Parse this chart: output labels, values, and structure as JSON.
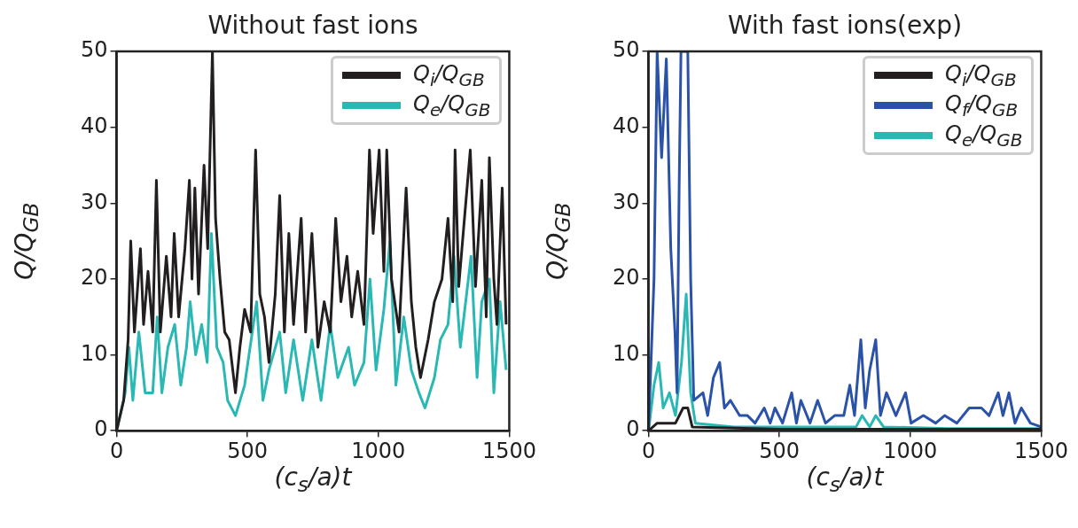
{
  "chart_data": [
    {
      "type": "line",
      "title": "Without fast ions",
      "xlabel": "(c$_{s}$/a)t",
      "ylabel": "Q/Q$_{GB}$",
      "xlim": [
        0,
        1500
      ],
      "ylim": [
        0,
        50
      ],
      "xticks": [
        0,
        500,
        1000,
        1500
      ],
      "yticks": [
        0,
        10,
        20,
        30,
        40,
        50
      ],
      "grid": false,
      "legend": "top right",
      "series": [
        {
          "name": "Q$_{i}$/Q$_{GB}$",
          "color": "#231f20",
          "x": [
            0,
            27,
            44,
            54,
            68,
            91,
            103,
            120,
            138,
            152,
            167,
            190,
            208,
            220,
            237,
            261,
            278,
            288,
            299,
            313,
            334,
            348,
            366,
            378,
            395,
            413,
            430,
            454,
            471,
            489,
            512,
            531,
            547,
            565,
            582,
            606,
            623,
            641,
            658,
            676,
            705,
            722,
            746,
            769,
            793,
            816,
            837,
            857,
            880,
            898,
            921,
            945,
            966,
            980,
            1003,
            1021,
            1032,
            1050,
            1079,
            1106,
            1126,
            1143,
            1161,
            1190,
            1214,
            1243,
            1266,
            1284,
            1293,
            1307,
            1324,
            1351,
            1371,
            1395,
            1412,
            1424,
            1441,
            1453,
            1473,
            1488
          ],
          "values": [
            0,
            4,
            12,
            25,
            13,
            24,
            14,
            21,
            13,
            33,
            13,
            23,
            15,
            26,
            15,
            24,
            33,
            20,
            32,
            18,
            35,
            24,
            50,
            28,
            20,
            13,
            12,
            5,
            11,
            16,
            13,
            37,
            18,
            15,
            9,
            18,
            31,
            13,
            26,
            14,
            28,
            13,
            26,
            11,
            17,
            13,
            28,
            17,
            23,
            15,
            21,
            14,
            37,
            26,
            37,
            21,
            37,
            20,
            13,
            32,
            17,
            11,
            7,
            12,
            17,
            20,
            28,
            17,
            37,
            19,
            26,
            37,
            19,
            33,
            15,
            36,
            20,
            14,
            32,
            14
          ]
        },
        {
          "name": "Q$_{e}$/Q$_{GB}$",
          "color": "#2ab8b5",
          "x": [
            0,
            33,
            47,
            62,
            85,
            109,
            138,
            155,
            173,
            196,
            222,
            245,
            267,
            281,
            302,
            325,
            346,
            362,
            383,
            407,
            424,
            454,
            489,
            535,
            559,
            582,
            623,
            646,
            676,
            711,
            746,
            781,
            816,
            845,
            886,
            909,
            945,
            968,
            991,
            1021,
            1044,
            1067,
            1097,
            1126,
            1155,
            1178,
            1214,
            1237,
            1266,
            1289,
            1313,
            1354,
            1377,
            1395,
            1424,
            1441,
            1465,
            1488
          ],
          "values": [
            0,
            5,
            11,
            4,
            13,
            5,
            5,
            15,
            5,
            11,
            14,
            6,
            11,
            17,
            10,
            14,
            9,
            26,
            11,
            9,
            4,
            2,
            6,
            17,
            4,
            8,
            13,
            5,
            12,
            4,
            12,
            4,
            14,
            7,
            11,
            6,
            9,
            20,
            8,
            16,
            25,
            6,
            15,
            8,
            5,
            3,
            7,
            12,
            14,
            23,
            11,
            23,
            7,
            17,
            20,
            5,
            17,
            8
          ]
        }
      ]
    },
    {
      "type": "line",
      "title": "With fast ions(exp)",
      "xlabel": "(c$_{s}$/a)t",
      "ylabel": "Q/Q$_{GB}$",
      "xlim": [
        0,
        1500
      ],
      "ylim": [
        0,
        50
      ],
      "xticks": [
        0,
        500,
        1000,
        1500
      ],
      "yticks": [
        0,
        10,
        20,
        30,
        40,
        50
      ],
      "grid": false,
      "legend": "top right",
      "series": [
        {
          "name": "Q$_{i}$/Q$_{GB}$",
          "color": "#231f20",
          "x": [
            0,
            33,
            68,
            103,
            132,
            150,
            167,
            500,
            1500
          ],
          "values": [
            0,
            1,
            1,
            1,
            3,
            3,
            0.5,
            0.2,
            0.2
          ]
        },
        {
          "name": "Q$_{f}$/Q$_{GB}$",
          "color": "#2a52a8",
          "x": [
            0,
            21,
            33,
            50,
            68,
            85,
            101,
            109,
            117,
            124,
            150,
            161,
            173,
            208,
            226,
            248,
            272,
            290,
            313,
            348,
            378,
            407,
            442,
            465,
            483,
            512,
            547,
            565,
            582,
            617,
            646,
            676,
            711,
            746,
            769,
            787,
            811,
            828,
            845,
            868,
            886,
            909,
            945,
            982,
            1003,
            1050,
            1097,
            1131,
            1178,
            1225,
            1272,
            1301,
            1336,
            1354,
            1377,
            1400,
            1424,
            1459,
            1500
          ],
          "values": [
            0,
            20,
            50,
            36,
            49,
            24,
            13,
            5,
            32,
            50,
            50,
            20,
            4,
            5,
            2,
            7,
            9,
            3,
            4,
            2,
            2,
            1,
            3,
            1,
            3,
            1,
            5,
            1,
            4,
            1,
            4,
            1,
            2,
            2,
            6,
            2,
            12,
            3,
            8,
            12,
            2,
            5,
            2,
            5,
            1,
            2,
            1,
            2,
            1,
            3,
            3,
            2,
            5,
            2,
            5,
            1,
            3,
            1,
            0.5
          ]
        },
        {
          "name": "Q$_{e}$/Q$_{GB}$",
          "color": "#2ab8b5",
          "x": [
            0,
            21,
            39,
            56,
            80,
            103,
            126,
            144,
            161,
            179,
            325,
            559,
            793,
            816,
            845,
            868,
            898,
            1143,
            1494
          ],
          "values": [
            0,
            6,
            9,
            3,
            5,
            2,
            9,
            18,
            5,
            1,
            0.5,
            0.5,
            0.5,
            2,
            0.5,
            2,
            0.5,
            0.3,
            0.3
          ]
        }
      ]
    }
  ]
}
